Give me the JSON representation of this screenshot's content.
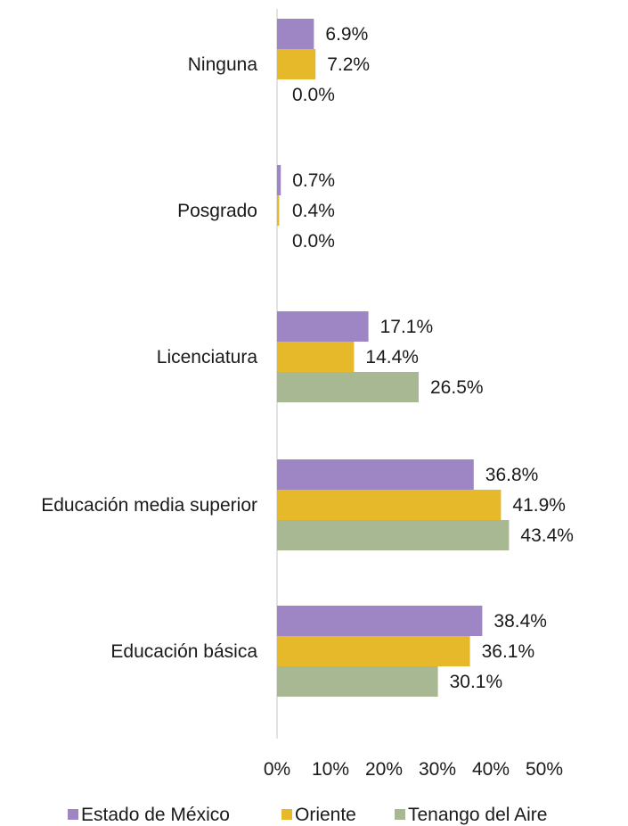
{
  "chart_data": {
    "type": "bar",
    "orientation": "horizontal",
    "categories": [
      "Ninguna",
      "Posgrado",
      "Licenciatura",
      "Educación media superior",
      "Educación básica"
    ],
    "series": [
      {
        "name": "Estado de México",
        "values": [
          6.9,
          0.7,
          17.1,
          36.8,
          38.4
        ],
        "labels": [
          "6.9%",
          "0.7%",
          "17.1%",
          "36.8%",
          "38.4%"
        ],
        "color": "#9e86c4"
      },
      {
        "name": "Oriente",
        "values": [
          7.2,
          0.4,
          14.4,
          41.9,
          36.1
        ],
        "labels": [
          "7.2%",
          "0.4%",
          "14.4%",
          "41.9%",
          "36.1%"
        ],
        "color": "#e6b92b"
      },
      {
        "name": "Tenango del Aire",
        "values": [
          0.0,
          0.0,
          26.5,
          43.4,
          30.1
        ],
        "labels": [
          "0.0%",
          "0.0%",
          "26.5%",
          "43.4%",
          "30.1%"
        ],
        "color": "#a8b893"
      }
    ],
    "x_ticks": [
      "0%",
      "10%",
      "20%",
      "30%",
      "40%",
      "50%"
    ],
    "xlim": [
      0,
      50
    ],
    "grid": false,
    "legend_position": "bottom",
    "title": "",
    "xlabel": "",
    "ylabel": ""
  }
}
